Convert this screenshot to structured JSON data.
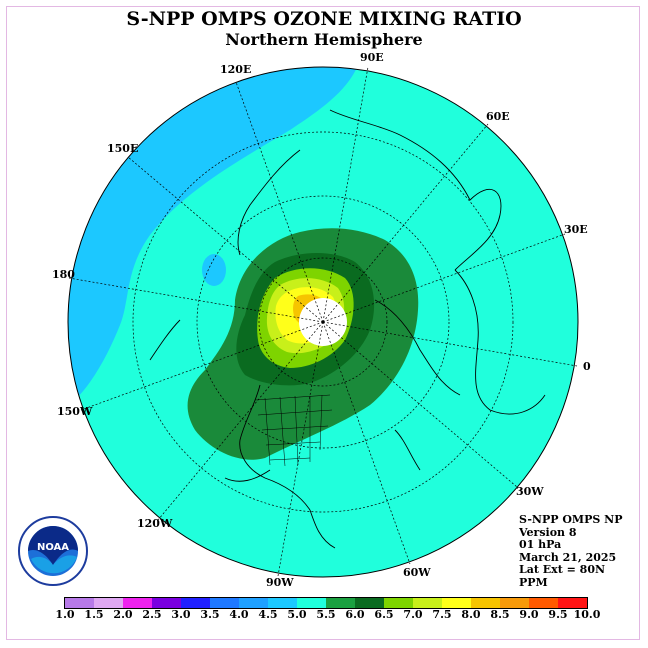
{
  "title": "S-NPP OMPS OZONE MIXING RATIO",
  "subtitle": "Northern Hemisphere",
  "longitude_labels": {
    "e90": "90E",
    "e120": "120E",
    "e60": "60E",
    "e150": "150E",
    "e30": "30E",
    "w180": "180",
    "zero": "0",
    "w150": "150W",
    "w30": "30W",
    "w120": "120W",
    "w60": "60W",
    "w90": "90W"
  },
  "info": {
    "instrument": "S-NPP OMPS NP",
    "version": "Version 8",
    "pressure": "01 hPa",
    "date": "March 21, 2025",
    "lat_ext": "Lat Ext = 80N",
    "unit": "PPM"
  },
  "logo": {
    "text": "NOAA",
    "ring_text": "NATIONAL OCEANIC AND ATMOSPHERIC ADMINISTRATION · U.S. DEPARTMENT OF COMMERCE"
  },
  "colorbar": {
    "ticks": [
      "1.0",
      "1.5",
      "2.0",
      "2.5",
      "3.0",
      "3.5",
      "4.0",
      "4.5",
      "5.0",
      "5.5",
      "6.0",
      "6.5",
      "7.0",
      "7.5",
      "8.0",
      "8.5",
      "9.0",
      "9.5",
      "10.0"
    ],
    "colors": [
      "#b77ae8",
      "#dfa8f2",
      "#ee22ee",
      "#7a00e0",
      "#2020ff",
      "#1e78ff",
      "#1ea0ff",
      "#1cc8ff",
      "#20ffdc",
      "#1aa040",
      "#0a6b20",
      "#7ed400",
      "#c8f01a",
      "#ffff1a",
      "#f6c400",
      "#f79a0a",
      "#ff5a00",
      "#ff1414",
      "#8b5a33"
    ]
  },
  "map_colors": {
    "band_4_0_4_5": "#1cc8ff",
    "band_4_5_5_0": "#20ffdc",
    "band_5_0_5_5": "#1a8a3a",
    "band_5_5_6_0": "#0a6b20",
    "band_6_0_6_5": "#7ed400",
    "band_6_5_7_0": "#c8f01a",
    "band_7_0_7_5": "#ffff1a",
    "band_7_5_8_0": "#f6c400",
    "no_data": "#ffffff"
  }
}
